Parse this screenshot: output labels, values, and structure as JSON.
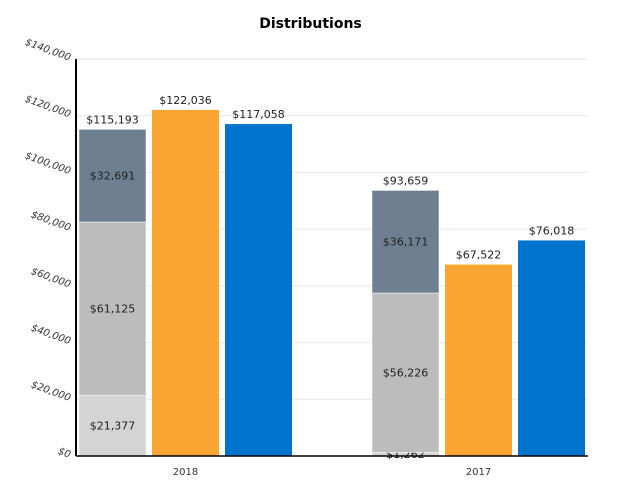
{
  "chart_data": {
    "type": "bar",
    "title": "Distributions",
    "categories": [
      "2018",
      "2017"
    ],
    "ylim": [
      0,
      140000
    ],
    "yticks": [
      "$0",
      "$20,000",
      "$40,000",
      "$60,000",
      "$80,000",
      "$100,000",
      "$120,000",
      "$140,000"
    ],
    "grid": true,
    "stacked_series": [
      {
        "values": [
          21377,
          1262
        ],
        "labels": [
          "$21,377",
          "$1,262"
        ],
        "color": "#d4d4d4"
      },
      {
        "values": [
          61125,
          56226
        ],
        "labels": [
          "$61,125",
          "$56,226"
        ],
        "color": "#bcbcbc"
      },
      {
        "values": [
          32691,
          36171
        ],
        "labels": [
          "$32,691",
          "$36,171"
        ],
        "color": "#6e7f91"
      }
    ],
    "stack_totals": [
      "$115,193",
      "$93,659"
    ],
    "series": [
      {
        "values": [
          122036,
          67522
        ],
        "labels": [
          "$122,036",
          "$67,522"
        ],
        "color": "#f8a533"
      },
      {
        "values": [
          117058,
          76018
        ],
        "labels": [
          "$117,058",
          "$76,018"
        ],
        "color": "#0074cc"
      }
    ]
  }
}
